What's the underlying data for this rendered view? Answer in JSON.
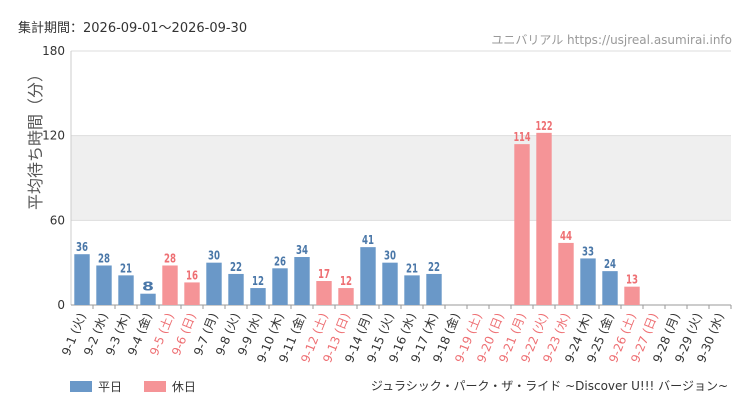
{
  "header": {
    "period_label": "集計期間：2026-09-01〜2026-09-30",
    "site_label": "ユニバリアル  https://usjreal.asumirai.info"
  },
  "footer": {
    "attraction_name": "ジュラシック・パーク・ザ・ライド ~Discover U!!! バージョン~"
  },
  "colors": {
    "weekday": "#6a98c8",
    "holiday": "#f59497",
    "weekday_label": "#4a77a8",
    "holiday_label": "#ee6f73",
    "band": "#efefef",
    "grid": "#dddddd"
  },
  "chart_data": {
    "type": "bar",
    "title": "",
    "ylabel": "平均待ち時間（分）",
    "ylim": [
      0,
      180
    ],
    "yticks": [
      0,
      60,
      120,
      180
    ],
    "bands": [
      [
        120,
        180
      ],
      [
        60,
        120
      ]
    ],
    "legend": [
      {
        "name": "平日",
        "key": "weekday"
      },
      {
        "name": "休日",
        "key": "holiday"
      }
    ],
    "categories": [
      "9-1 (火)",
      "9-2 (水)",
      "9-3 (木)",
      "9-4 (金)",
      "9-5 (土)",
      "9-6 (日)",
      "9-7 (月)",
      "9-8 (火)",
      "9-9 (水)",
      "9-10 (木)",
      "9-11 (金)",
      "9-12 (土)",
      "9-13 (日)",
      "9-14 (月)",
      "9-15 (火)",
      "9-16 (水)",
      "9-17 (木)",
      "9-18 (金)",
      "9-19 (土)",
      "9-20 (日)",
      "9-21 (月)",
      "9-22 (火)",
      "9-23 (水)",
      "9-24 (木)",
      "9-25 (金)",
      "9-26 (土)",
      "9-27 (日)",
      "9-28 (月)",
      "9-29 (火)",
      "9-30 (水)"
    ],
    "values": [
      36,
      28,
      21,
      8,
      28,
      16,
      30,
      22,
      12,
      26,
      34,
      17,
      12,
      41,
      30,
      21,
      22,
      null,
      null,
      null,
      114,
      122,
      44,
      33,
      24,
      13,
      null,
      null,
      null,
      null
    ],
    "day_types": [
      "weekday",
      "weekday",
      "weekday",
      "weekday",
      "holiday",
      "holiday",
      "weekday",
      "weekday",
      "weekday",
      "weekday",
      "weekday",
      "holiday",
      "holiday",
      "weekday",
      "weekday",
      "weekday",
      "weekday",
      "weekday",
      "holiday",
      "holiday",
      "holiday",
      "holiday",
      "holiday",
      "weekday",
      "weekday",
      "holiday",
      "holiday",
      "weekday",
      "weekday",
      "weekday"
    ]
  }
}
